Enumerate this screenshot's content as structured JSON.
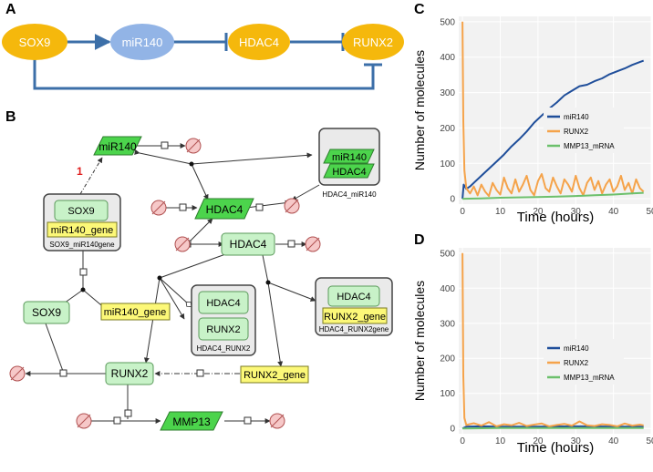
{
  "panel_labels": {
    "a": "A",
    "b": "B",
    "c": "C",
    "d": "D"
  },
  "panel_a": {
    "nodes": {
      "sox9": "SOX9",
      "mir140": "miR140",
      "hdac4": "HDAC4",
      "runx2": "RUNX2"
    },
    "colors": {
      "gene_node": "#F5B80C",
      "mirna_node": "#92B4E6",
      "edge": "#3C6FA8"
    }
  },
  "panel_b": {
    "red_annotation": "1",
    "nodes": {
      "mir140": "miR140",
      "hdac4_top": "HDAC4",
      "hdac4_center": "HDAC4",
      "sox9": "SOX9",
      "mir140_gene": "miR140_gene",
      "runx2": "RUNX2",
      "runx2_gene": "RUNX2_gene",
      "mmp13": "MMP13"
    },
    "complexes": {
      "sox9_mir140gene": {
        "inner": "SOX9",
        "gene": "miR140_gene",
        "label": "SOX9_miR140gene"
      },
      "hdac4_mir140": {
        "inner_a": "miR140",
        "inner_b": "HDAC4",
        "label": "HDAC4_miR140"
      },
      "hdac4_runx2": {
        "inner_a": "HDAC4",
        "inner_b": "RUNX2",
        "label": "HDAC4_RUNX2"
      },
      "hdac4_runx2gene": {
        "inner": "HDAC4",
        "gene": "RUNX2_gene",
        "label": "HDAC4_RUNX2gene"
      }
    }
  },
  "chart_data": [
    {
      "panel": "C",
      "type": "line",
      "xlabel": "Time (hours)",
      "ylabel": "Number of molecules",
      "xlim": [
        -1,
        50
      ],
      "ylim": [
        -15,
        515
      ],
      "xticks": [
        0,
        10,
        20,
        30,
        40,
        50
      ],
      "yticks": [
        0,
        100,
        200,
        300,
        400,
        500
      ],
      "legend": [
        "miR140",
        "RUNX2",
        "MMP13_mRNA"
      ],
      "series": [
        {
          "name": "miR140",
          "color": "#1F4E9A",
          "x": [
            0,
            0.3,
            1,
            2,
            3,
            5,
            7,
            9,
            11,
            13,
            15,
            17,
            19,
            21,
            23,
            25,
            27,
            29,
            31,
            33,
            35,
            37,
            39,
            41,
            43,
            45,
            47,
            48
          ],
          "y": [
            0,
            40,
            28,
            35,
            45,
            65,
            85,
            105,
            125,
            148,
            168,
            190,
            215,
            235,
            255,
            272,
            292,
            305,
            318,
            322,
            332,
            340,
            352,
            360,
            368,
            378,
            386,
            390
          ]
        },
        {
          "name": "RUNX2",
          "color": "#F5A34A",
          "x": [
            0,
            0.2,
            0.5,
            1,
            2,
            3,
            4,
            5,
            6,
            7,
            8,
            9,
            10,
            11,
            12,
            13,
            14,
            15,
            16,
            17,
            18,
            19,
            20,
            21,
            22,
            23,
            24,
            25,
            26,
            27,
            28,
            29,
            30,
            31,
            32,
            33,
            34,
            35,
            36,
            37,
            38,
            39,
            40,
            41,
            42,
            43,
            44,
            45,
            46,
            47,
            48
          ],
          "y": [
            500,
            220,
            80,
            30,
            15,
            35,
            10,
            40,
            20,
            8,
            45,
            25,
            12,
            60,
            30,
            15,
            55,
            20,
            40,
            65,
            25,
            10,
            50,
            70,
            30,
            20,
            60,
            35,
            15,
            55,
            40,
            20,
            65,
            30,
            10,
            45,
            60,
            25,
            50,
            15,
            40,
            55,
            20,
            35,
            65,
            25,
            45,
            15,
            55,
            30,
            20
          ]
        },
        {
          "name": "MMP13_mRNA",
          "color": "#6CC06C",
          "x": [
            0,
            5,
            10,
            15,
            20,
            25,
            30,
            35,
            40,
            45,
            48
          ],
          "y": [
            0,
            1,
            3,
            4,
            5,
            6,
            8,
            10,
            12,
            15,
            17
          ]
        }
      ]
    },
    {
      "panel": "D",
      "type": "line",
      "xlabel": "Time (hours)",
      "ylabel": "Number of molecules",
      "xlim": [
        -1,
        50
      ],
      "ylim": [
        -15,
        515
      ],
      "xticks": [
        0,
        10,
        20,
        30,
        40,
        50
      ],
      "yticks": [
        0,
        100,
        200,
        300,
        400,
        500
      ],
      "legend": [
        "miR140",
        "RUNX2",
        "MMP13_mRNA"
      ],
      "series": [
        {
          "name": "miR140",
          "color": "#1F4E9A",
          "x": [
            0,
            1,
            5,
            10,
            20,
            30,
            40,
            48
          ],
          "y": [
            0,
            5,
            6,
            5,
            5,
            6,
            5,
            5
          ]
        },
        {
          "name": "RUNX2",
          "color": "#F5A34A",
          "x": [
            0,
            0.2,
            0.5,
            1,
            3,
            5,
            7,
            9,
            11,
            13,
            15,
            17,
            19,
            21,
            23,
            25,
            27,
            29,
            31,
            33,
            35,
            37,
            39,
            41,
            43,
            45,
            47,
            48
          ],
          "y": [
            500,
            150,
            30,
            10,
            15,
            8,
            18,
            6,
            12,
            9,
            16,
            7,
            11,
            14,
            6,
            10,
            13,
            8,
            20,
            9,
            7,
            12,
            10,
            6,
            14,
            8,
            11,
            9
          ]
        },
        {
          "name": "MMP13_mRNA",
          "color": "#6CC06C",
          "x": [
            0,
            10,
            20,
            30,
            40,
            48
          ],
          "y": [
            0,
            1,
            1,
            1,
            1,
            1
          ]
        }
      ]
    }
  ]
}
